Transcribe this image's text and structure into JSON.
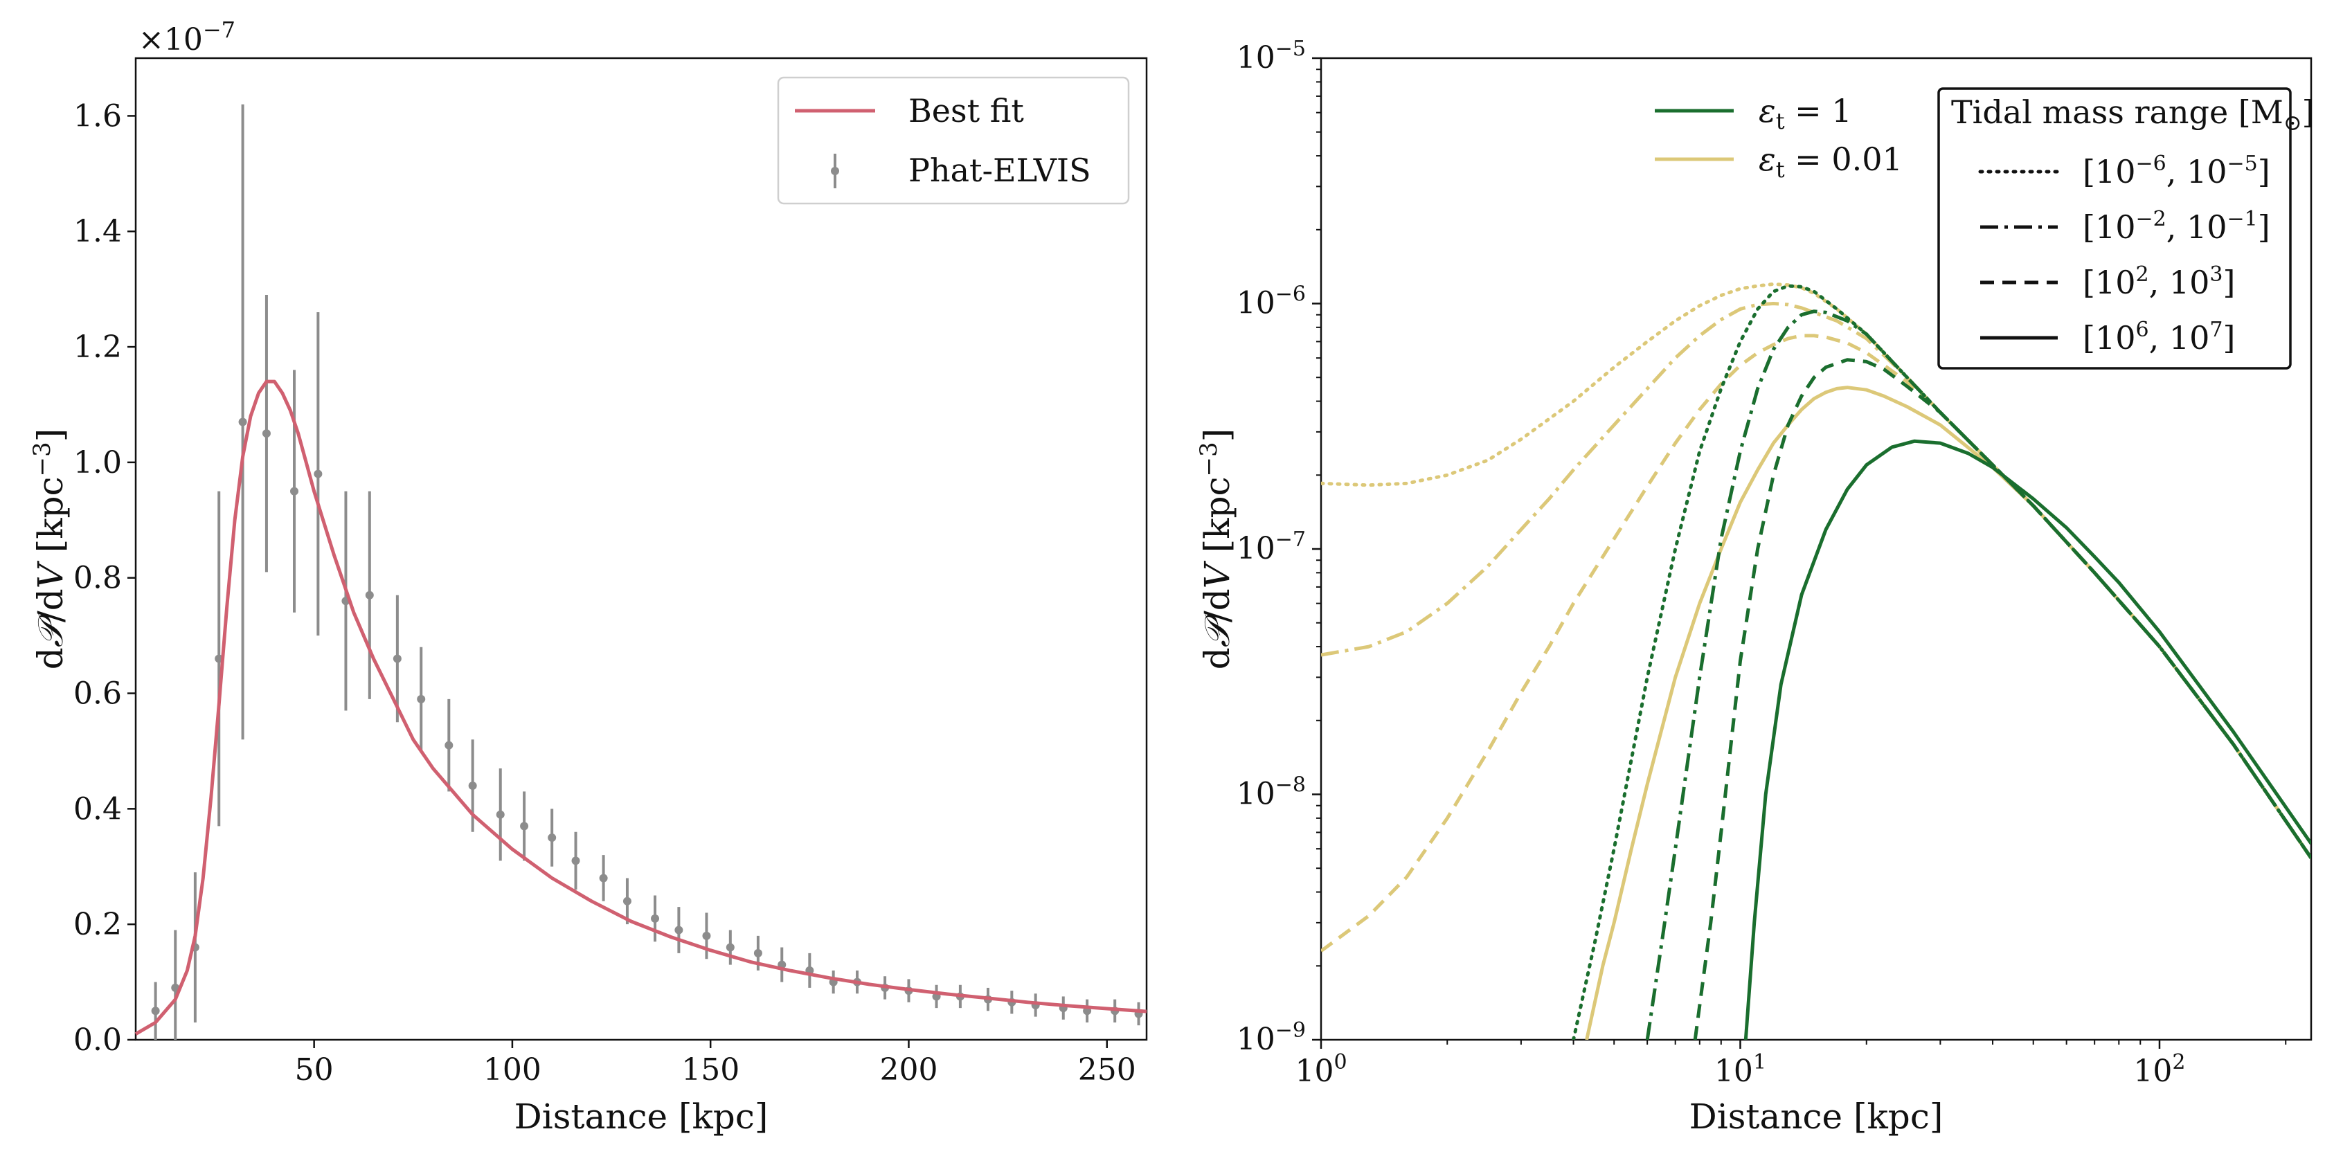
{
  "colors": {
    "best_fit": "#d06070",
    "data_points": "#8c8c8c",
    "green": "#1a6e2e",
    "yellow": "#dcc878",
    "black": "#111111"
  },
  "chart_data": [
    {
      "type": "line",
      "title": "",
      "xlabel": "Distance [kpc]",
      "ylabel": "dP/dV [kpc^-3]",
      "xlim": [
        5,
        260
      ],
      "ylim": [
        0.0,
        1.7
      ],
      "y_offset_label": "×10^-7",
      "y_multiplier_text": "×10",
      "y_multiplier_exp": "−7",
      "xticks": [
        50,
        100,
        150,
        200,
        250
      ],
      "xtick_labels": [
        "50",
        "100",
        "150",
        "200",
        "250"
      ],
      "yticks": [
        0.0,
        0.2,
        0.4,
        0.6,
        0.8,
        1.0,
        1.2,
        1.4,
        1.6
      ],
      "ytick_labels": [
        "0.0",
        "0.2",
        "0.4",
        "0.6",
        "0.8",
        "1.0",
        "1.2",
        "1.4",
        "1.6"
      ],
      "legend_position": "top-right",
      "series": [
        {
          "name": "Best fit",
          "kind": "curve",
          "color": "#d06070",
          "x": [
            5,
            10,
            15,
            18,
            20,
            22,
            24,
            26,
            28,
            30,
            32,
            34,
            36,
            38,
            40,
            42,
            44,
            46,
            48,
            50,
            55,
            60,
            65,
            70,
            75,
            80,
            90,
            100,
            110,
            120,
            130,
            140,
            150,
            160,
            170,
            180,
            190,
            200,
            210,
            220,
            230,
            240,
            250,
            260
          ],
          "y": [
            0.01,
            0.03,
            0.07,
            0.12,
            0.18,
            0.28,
            0.42,
            0.58,
            0.75,
            0.9,
            1.01,
            1.08,
            1.12,
            1.14,
            1.14,
            1.12,
            1.09,
            1.05,
            1.0,
            0.95,
            0.84,
            0.74,
            0.66,
            0.59,
            0.52,
            0.47,
            0.39,
            0.33,
            0.28,
            0.24,
            0.205,
            0.178,
            0.155,
            0.135,
            0.12,
            0.107,
            0.096,
            0.087,
            0.079,
            0.072,
            0.065,
            0.059,
            0.054,
            0.049
          ]
        },
        {
          "name": "Phat-ELVIS",
          "kind": "errorbar",
          "color": "#8c8c8c",
          "x": [
            10,
            15,
            20,
            26,
            32,
            38,
            45,
            51,
            58,
            64,
            71,
            77,
            84,
            90,
            97,
            103,
            110,
            116,
            123,
            129,
            136,
            142,
            149,
            155,
            162,
            168,
            175,
            181,
            187,
            194,
            200,
            207,
            213,
            220,
            226,
            232,
            239,
            245,
            252,
            258
          ],
          "y": [
            0.05,
            0.09,
            0.16,
            0.66,
            1.07,
            1.05,
            0.95,
            0.98,
            0.76,
            0.77,
            0.66,
            0.59,
            0.51,
            0.44,
            0.39,
            0.37,
            0.35,
            0.31,
            0.28,
            0.24,
            0.21,
            0.19,
            0.18,
            0.16,
            0.15,
            0.13,
            0.12,
            0.1,
            0.1,
            0.09,
            0.085,
            0.075,
            0.075,
            0.07,
            0.065,
            0.06,
            0.055,
            0.05,
            0.05,
            0.045
          ],
          "err": [
            0.05,
            0.1,
            0.13,
            0.29,
            0.55,
            0.24,
            0.21,
            0.28,
            0.19,
            0.18,
            0.11,
            0.09,
            0.08,
            0.08,
            0.08,
            0.06,
            0.05,
            0.05,
            0.04,
            0.04,
            0.04,
            0.04,
            0.04,
            0.03,
            0.03,
            0.03,
            0.03,
            0.02,
            0.02,
            0.02,
            0.02,
            0.02,
            0.02,
            0.02,
            0.02,
            0.02,
            0.02,
            0.02,
            0.02,
            0.02
          ]
        }
      ]
    },
    {
      "type": "line",
      "title": "",
      "xlabel": "Distance [kpc]",
      "ylabel": "dP/dV [kpc^-3]",
      "xscale": "log",
      "yscale": "log",
      "xlim": [
        1,
        230
      ],
      "ylim": [
        1e-09,
        1e-05
      ],
      "xticks": [
        1,
        10,
        100
      ],
      "xtick_labels": [
        {
          "base": "10",
          "exp": "0"
        },
        {
          "base": "10",
          "exp": "1"
        },
        {
          "base": "10",
          "exp": "2"
        }
      ],
      "yticks": [
        1e-09,
        1e-08,
        1e-07,
        1e-06,
        1e-05
      ],
      "ytick_labels": [
        {
          "base": "10",
          "exp": "−9"
        },
        {
          "base": "10",
          "exp": "−8"
        },
        {
          "base": "10",
          "exp": "−7"
        },
        {
          "base": "10",
          "exp": "−6"
        },
        {
          "base": "10",
          "exp": "−5"
        }
      ],
      "legend_eps": {
        "position": "top-center",
        "entries": [
          {
            "label_sym": "ε",
            "label_sub": "t",
            "label_val": " = 1",
            "label": "ϵt = 1",
            "color": "#1a6e2e"
          },
          {
            "label_sym": "ε",
            "label_sub": "t",
            "label_val": " = 0.01",
            "label": "ϵt = 0.01",
            "color": "#dcc878"
          }
        ]
      },
      "legend_mass": {
        "position": "top-right",
        "title": "Tidal mass range [M⊙]",
        "title_main": "Tidal mass range [M",
        "title_sym": "⊙",
        "title_end": "]",
        "entries": [
          {
            "label": "[10^-6, 10^-5]",
            "style": "dotted",
            "a": "−6",
            "b": "−5"
          },
          {
            "label": "[10^-2, 10^-1]",
            "style": "dashdot",
            "a": "−2",
            "b": "−1"
          },
          {
            "label": "[10^2, 10^3]",
            "style": "dashed",
            "a": "2",
            "b": "3"
          },
          {
            "label": "[10^6, 10^7]",
            "style": "solid",
            "a": "6",
            "b": "7"
          }
        ]
      },
      "series": [
        {
          "name": "eps=1 [1e-6,1e-5]",
          "color": "#1a6e2e",
          "style": "dotted",
          "x": [
            4.0,
            4.5,
            5,
            6,
            7,
            8,
            9,
            10,
            11,
            12,
            13,
            14,
            15,
            17,
            20,
            25,
            30,
            40,
            50,
            70,
            100,
            150,
            230
          ],
          "y": [
            1e-09,
            2.5e-09,
            6e-09,
            3e-08,
            1e-07,
            2.5e-07,
            4.5e-07,
            7e-07,
            9.5e-07,
            1.12e-06,
            1.18e-06,
            1.17e-06,
            1.12e-06,
            9.5e-07,
            7.5e-07,
            5e-07,
            3.6e-07,
            2.2e-07,
            1.5e-07,
            8e-08,
            4e-08,
            1.6e-08,
            5.5e-09
          ]
        },
        {
          "name": "eps=1 [1e-2,1e-1]",
          "color": "#1a6e2e",
          "style": "dashdot",
          "x": [
            6.0,
            6.5,
            7,
            8,
            9,
            10,
            11,
            12,
            13,
            14,
            15,
            16,
            18,
            20,
            25,
            30,
            40,
            50,
            70,
            100,
            150,
            230
          ],
          "y": [
            1e-09,
            2.5e-09,
            6e-09,
            3e-08,
            1.1e-07,
            2.5e-07,
            4.5e-07,
            6.5e-07,
            8e-07,
            9e-07,
            9.3e-07,
            9.2e-07,
            8.5e-07,
            7.5e-07,
            5e-07,
            3.6e-07,
            2.2e-07,
            1.5e-07,
            8e-08,
            4e-08,
            1.6e-08,
            5.5e-09
          ]
        },
        {
          "name": "eps=1 [1e2,1e3]",
          "color": "#1a6e2e",
          "style": "dashed",
          "x": [
            7.8,
            8.5,
            9,
            10,
            11,
            12,
            13,
            14,
            15,
            16,
            18,
            20,
            22,
            25,
            30,
            40,
            50,
            70,
            100,
            150,
            230
          ],
          "y": [
            1e-09,
            3e-09,
            7e-09,
            3.5e-08,
            1e-07,
            2e-07,
            3.2e-07,
            4.2e-07,
            5e-07,
            5.5e-07,
            5.9e-07,
            5.8e-07,
            5.4e-07,
            4.6e-07,
            3.6e-07,
            2.2e-07,
            1.5e-07,
            8e-08,
            4e-08,
            1.6e-08,
            5.5e-09
          ]
        },
        {
          "name": "eps=1 [1e6,1e7]",
          "color": "#1a6e2e",
          "style": "solid",
          "x": [
            10.3,
            10.8,
            11.5,
            12.5,
            14,
            16,
            18,
            20,
            23,
            26,
            30,
            35,
            40,
            50,
            60,
            70,
            80,
            100,
            150,
            230
          ],
          "y": [
            1e-09,
            3e-09,
            1e-08,
            2.8e-08,
            6.5e-08,
            1.2e-07,
            1.75e-07,
            2.2e-07,
            2.6e-07,
            2.75e-07,
            2.7e-07,
            2.45e-07,
            2.15e-07,
            1.6e-07,
            1.22e-07,
            9.3e-08,
            7.3e-08,
            4.6e-08,
            1.8e-08,
            6.3e-09
          ]
        },
        {
          "name": "eps=0.01 [1e-6,1e-5]",
          "color": "#dcc878",
          "style": "dotted",
          "x": [
            1,
            1.3,
            1.6,
            2,
            2.5,
            3,
            4,
            5,
            6,
            7,
            8,
            9,
            10,
            11,
            12,
            13,
            14,
            15,
            17,
            20,
            25,
            30,
            40,
            50,
            70,
            100,
            150,
            230
          ],
          "y": [
            1.85e-07,
            1.82e-07,
            1.85e-07,
            2e-07,
            2.3e-07,
            2.8e-07,
            4e-07,
            5.5e-07,
            7e-07,
            8.5e-07,
            9.8e-07,
            1.08e-06,
            1.15e-06,
            1.18e-06,
            1.2e-06,
            1.19e-06,
            1.16e-06,
            1.1e-06,
            9.5e-07,
            7.5e-07,
            5e-07,
            3.6e-07,
            2.2e-07,
            1.5e-07,
            8e-08,
            4e-08,
            1.6e-08,
            5.5e-09
          ]
        },
        {
          "name": "eps=0.01 [1e-2,1e-1]",
          "color": "#dcc878",
          "style": "dashdot",
          "x": [
            1,
            1.3,
            1.6,
            2,
            2.5,
            3,
            3.5,
            4,
            5,
            6,
            7,
            8,
            9,
            10,
            11,
            12,
            13,
            14,
            15,
            17,
            20,
            25,
            30,
            40,
            50,
            70,
            100,
            150,
            230
          ],
          "y": [
            3.7e-08,
            4e-08,
            4.6e-08,
            6e-08,
            8.5e-08,
            1.2e-07,
            1.6e-07,
            2.1e-07,
            3.2e-07,
            4.5e-07,
            6e-07,
            7.4e-07,
            8.6e-07,
            9.5e-07,
            9.9e-07,
            1e-06,
            9.9e-07,
            9.6e-07,
            9.2e-07,
            8.5e-07,
            7.2e-07,
            5e-07,
            3.6e-07,
            2.2e-07,
            1.5e-07,
            8e-08,
            4e-08,
            1.6e-08,
            5.5e-09
          ]
        },
        {
          "name": "eps=0.01 [1e2,1e3]",
          "color": "#dcc878",
          "style": "dashed",
          "x": [
            1,
            1.3,
            1.6,
            2,
            2.5,
            3,
            3.5,
            4,
            5,
            6,
            7,
            8,
            9,
            10,
            11,
            12,
            13,
            14,
            15,
            16,
            18,
            20,
            25,
            30,
            40,
            50,
            70,
            100,
            150,
            230
          ],
          "y": [
            2.3e-09,
            3.2e-09,
            4.6e-09,
            8e-09,
            1.5e-08,
            2.6e-08,
            4e-08,
            6e-08,
            1.1e-07,
            1.8e-07,
            2.7e-07,
            3.7e-07,
            4.7e-07,
            5.6e-07,
            6.3e-07,
            6.8e-07,
            7.2e-07,
            7.4e-07,
            7.4e-07,
            7.3e-07,
            6.9e-07,
            6.3e-07,
            4.8e-07,
            3.6e-07,
            2.2e-07,
            1.5e-07,
            8e-08,
            4e-08,
            1.6e-08,
            5.5e-09
          ]
        },
        {
          "name": "eps=0.01 [1e6,1e7]",
          "color": "#dcc878",
          "style": "solid",
          "x": [
            4.3,
            4.7,
            5,
            5.5,
            6,
            7,
            8,
            9,
            10,
            11,
            12,
            13,
            14,
            15,
            16,
            17,
            18,
            20,
            22,
            25,
            30,
            40,
            50,
            70,
            100,
            150,
            230
          ],
          "y": [
            1e-09,
            2e-09,
            3e-09,
            6e-09,
            1.1e-08,
            3e-08,
            6e-08,
            1e-07,
            1.55e-07,
            2.1e-07,
            2.7e-07,
            3.2e-07,
            3.7e-07,
            4.1e-07,
            4.35e-07,
            4.5e-07,
            4.55e-07,
            4.45e-07,
            4.2e-07,
            3.8e-07,
            3.2e-07,
            2.15e-07,
            1.5e-07,
            8e-08,
            4e-08,
            1.6e-08,
            5.5e-09
          ]
        }
      ]
    }
  ]
}
